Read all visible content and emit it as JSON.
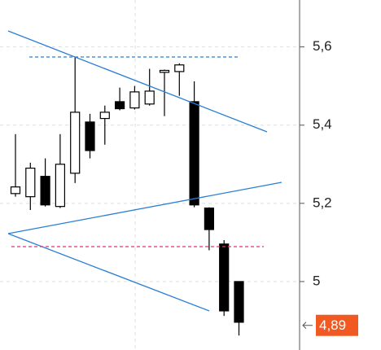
{
  "chart_data": {
    "type": "candlestick",
    "open": [
      5.225,
      5.217,
      5.269,
      5.192,
      5.277,
      5.408,
      5.417,
      5.46,
      5.444,
      5.454,
      5.535,
      5.537,
      5.46,
      5.188,
      5.096,
      5.0
    ],
    "high": [
      5.377,
      5.304,
      5.315,
      5.377,
      5.575,
      5.429,
      5.45,
      5.496,
      5.5,
      5.544,
      5.542,
      5.558,
      5.512,
      5.19,
      5.106,
      5.0
    ],
    "low": [
      5.217,
      5.183,
      5.192,
      5.188,
      5.252,
      5.315,
      5.35,
      5.438,
      5.44,
      5.45,
      5.423,
      5.475,
      5.19,
      5.08,
      4.912,
      4.862
    ],
    "close": [
      5.242,
      5.29,
      5.196,
      5.3,
      5.433,
      5.335,
      5.433,
      5.442,
      5.485,
      5.487,
      5.54,
      5.554,
      5.196,
      5.133,
      4.925,
      4.896
    ],
    "ylim": [
      4.825,
      5.72
    ],
    "yticks": [
      {
        "value": 5,
        "label": "5"
      },
      {
        "value": 5.2,
        "label": "5,2"
      },
      {
        "value": 5.4,
        "label": "5,4"
      },
      {
        "value": 5.6,
        "label": "5,6"
      }
    ],
    "grid": true,
    "up_color": "#ffffff",
    "down_color": "#000000",
    "last_price": {
      "value": 4.888,
      "label": "4,89"
    },
    "last_price_color": "#f05a22"
  }
}
